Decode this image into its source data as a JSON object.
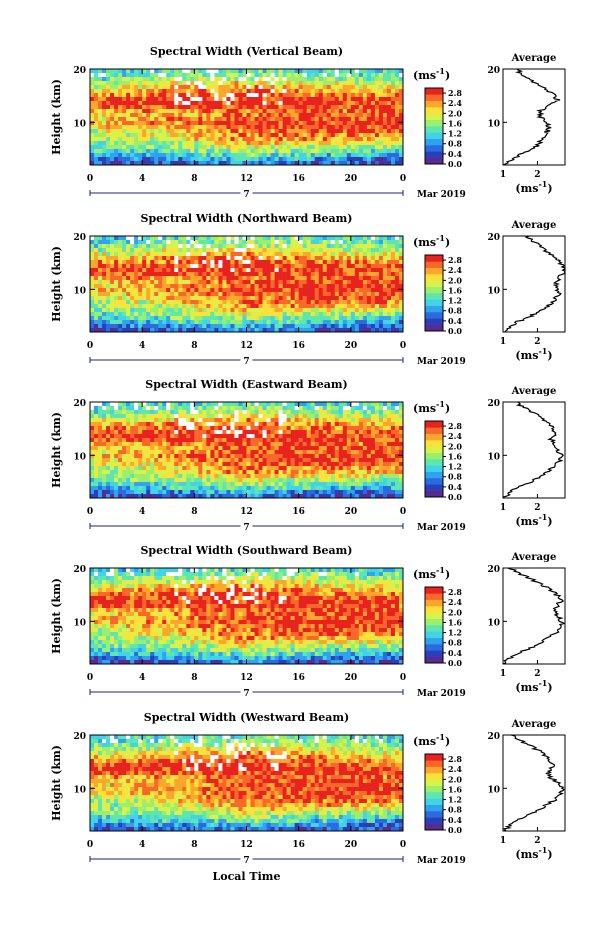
{
  "figure": {
    "xlabel": "Local Time",
    "date_label": "Mar 2019",
    "date_day": "7"
  },
  "chart_data": [
    {
      "type": "heatmap",
      "title": "Spectral Width (Vertical Beam)",
      "ylabel": "Height (km)",
      "xticks": [
        "0",
        "4",
        "8",
        "12",
        "16",
        "20",
        "0"
      ],
      "yticks": [
        "10",
        "20"
      ],
      "xlim": [
        0,
        24
      ],
      "ylim": [
        2,
        20
      ],
      "colorbar": {
        "unit": "(ms",
        "unit_exp": "-1",
        "unit_close": ")",
        "ticks": [
          "2.8",
          "2.4",
          "2.0",
          "1.6",
          "1.2",
          "0.8",
          "0.4",
          "0.0"
        ],
        "range": [
          0,
          3.0
        ]
      },
      "profile": {
        "title": "Average",
        "xticks": [
          "1",
          "2"
        ],
        "xlim": [
          1,
          2.8
        ],
        "xlabel": "(ms",
        "xlabel_exp": "-1",
        "xlabel_close": ")"
      }
    },
    {
      "type": "heatmap",
      "title": "Spectral Width (Northward Beam)",
      "ylabel": "Height (km)",
      "xticks": [
        "0",
        "4",
        "8",
        "12",
        "16",
        "20",
        "0"
      ],
      "yticks": [
        "10",
        "20"
      ],
      "xlim": [
        0,
        24
      ],
      "ylim": [
        2,
        20
      ],
      "colorbar": {
        "unit": "(ms",
        "unit_exp": "-1",
        "unit_close": ")",
        "ticks": [
          "2.8",
          "2.4",
          "2.0",
          "1.6",
          "1.2",
          "0.8",
          "0.4",
          "0.0"
        ],
        "range": [
          0,
          3.0
        ]
      },
      "profile": {
        "title": "Average",
        "xticks": [
          "1",
          "2"
        ],
        "xlim": [
          1,
          2.8
        ],
        "xlabel": "(ms",
        "xlabel_exp": "-1",
        "xlabel_close": ")"
      }
    },
    {
      "type": "heatmap",
      "title": "Spectral Width (Eastward Beam)",
      "ylabel": "Height (km)",
      "xticks": [
        "0",
        "4",
        "8",
        "12",
        "16",
        "20",
        "0"
      ],
      "yticks": [
        "10",
        "20"
      ],
      "xlim": [
        0,
        24
      ],
      "ylim": [
        2,
        20
      ],
      "colorbar": {
        "unit": "(ms",
        "unit_exp": "-1",
        "unit_close": ")",
        "ticks": [
          "2.8",
          "2.4",
          "2.0",
          "1.6",
          "1.2",
          "0.8",
          "0.4",
          "0.0"
        ],
        "range": [
          0,
          3.0
        ]
      },
      "profile": {
        "title": "Average",
        "xticks": [
          "1",
          "2"
        ],
        "xlim": [
          1,
          2.8
        ],
        "xlabel": "(ms",
        "xlabel_exp": "-1",
        "xlabel_close": ")"
      }
    },
    {
      "type": "heatmap",
      "title": "Spectral Width (Southward Beam)",
      "ylabel": "Height (km)",
      "xticks": [
        "0",
        "4",
        "8",
        "12",
        "16",
        "20",
        "0"
      ],
      "yticks": [
        "10",
        "20"
      ],
      "xlim": [
        0,
        24
      ],
      "ylim": [
        2,
        20
      ],
      "colorbar": {
        "unit": "(ms",
        "unit_exp": "-1",
        "unit_close": ")",
        "ticks": [
          "2.8",
          "2.4",
          "2.0",
          "1.6",
          "1.2",
          "0.8",
          "0.4",
          "0.0"
        ],
        "range": [
          0,
          3.0
        ]
      },
      "profile": {
        "title": "Average",
        "xticks": [
          "1",
          "2"
        ],
        "xlim": [
          1,
          2.8
        ],
        "xlabel": "(ms",
        "xlabel_exp": "-1",
        "xlabel_close": ")"
      }
    },
    {
      "type": "heatmap",
      "title": "Spectral Width (Westward Beam)",
      "ylabel": "Height (km)",
      "xticks": [
        "0",
        "4",
        "8",
        "12",
        "16",
        "20",
        "0"
      ],
      "yticks": [
        "10",
        "20"
      ],
      "xlim": [
        0,
        24
      ],
      "ylim": [
        2,
        20
      ],
      "colorbar": {
        "unit": "(ms",
        "unit_exp": "-1",
        "unit_close": ")",
        "ticks": [
          "2.8",
          "2.4",
          "2.0",
          "1.6",
          "1.2",
          "0.8",
          "0.4",
          "0.0"
        ],
        "range": [
          0,
          3.0
        ]
      },
      "profile": {
        "title": "Average",
        "xticks": [
          "1",
          "2"
        ],
        "xlim": [
          1,
          2.8
        ],
        "xlabel": "(ms",
        "xlabel_exp": "-1",
        "xlabel_close": ")"
      }
    }
  ],
  "profiles": [
    {
      "height": [
        2,
        3,
        4,
        5,
        6,
        7,
        8,
        9,
        10,
        11,
        12,
        13,
        14,
        15,
        16,
        17,
        18,
        19,
        20
      ],
      "width": [
        1.0,
        1.25,
        1.5,
        1.9,
        2.05,
        2.15,
        2.25,
        2.35,
        2.3,
        2.1,
        2.05,
        2.25,
        2.6,
        2.5,
        2.3,
        2.0,
        1.75,
        1.55,
        1.4
      ]
    },
    {
      "height": [
        2,
        3,
        4,
        5,
        6,
        7,
        8,
        9,
        10,
        11,
        12,
        13,
        14,
        15,
        16,
        17,
        18,
        19,
        20
      ],
      "width": [
        1.0,
        1.25,
        1.45,
        1.8,
        2.1,
        2.3,
        2.5,
        2.6,
        2.6,
        2.55,
        2.6,
        2.75,
        2.8,
        2.65,
        2.5,
        2.3,
        2.1,
        1.9,
        1.7
      ]
    },
    {
      "height": [
        2,
        3,
        4,
        5,
        6,
        7,
        8,
        9,
        10,
        11,
        12,
        13,
        14,
        15,
        16,
        17,
        18,
        19,
        20
      ],
      "width": [
        1.0,
        1.2,
        1.45,
        1.8,
        2.1,
        2.3,
        2.5,
        2.65,
        2.7,
        2.6,
        2.5,
        2.4,
        2.55,
        2.45,
        2.3,
        2.1,
        1.9,
        1.6,
        1.35
      ]
    },
    {
      "height": [
        2,
        3,
        4,
        5,
        6,
        7,
        8,
        9,
        10,
        11,
        12,
        13,
        14,
        15,
        16,
        17,
        18,
        19,
        20
      ],
      "width": [
        1.0,
        1.2,
        1.45,
        1.8,
        2.1,
        2.35,
        2.55,
        2.7,
        2.7,
        2.6,
        2.55,
        2.55,
        2.7,
        2.55,
        2.35,
        2.1,
        1.8,
        1.45,
        1.2
      ]
    },
    {
      "height": [
        2,
        3,
        4,
        5,
        6,
        7,
        8,
        9,
        10,
        11,
        12,
        13,
        14,
        15,
        16,
        17,
        18,
        19,
        20
      ],
      "width": [
        1.0,
        1.2,
        1.4,
        1.75,
        2.05,
        2.3,
        2.55,
        2.7,
        2.75,
        2.6,
        2.4,
        2.3,
        2.45,
        2.4,
        2.25,
        2.05,
        1.8,
        1.5,
        1.3
      ]
    }
  ],
  "field": {
    "heights": [
      2,
      3,
      4,
      5,
      6,
      7,
      8,
      9,
      10,
      11,
      12,
      13,
      14,
      15,
      16,
      17,
      18,
      19,
      20
    ],
    "times": [
      0,
      6,
      12,
      18,
      24
    ],
    "width": [
      [
        0.3,
        0.4,
        0.6,
        0.4,
        0.3
      ],
      [
        0.6,
        0.8,
        1.0,
        0.7,
        0.5
      ],
      [
        1.0,
        1.2,
        1.5,
        1.2,
        0.9
      ],
      [
        1.3,
        1.5,
        1.8,
        1.5,
        1.4
      ],
      [
        1.5,
        1.7,
        2.2,
        2.0,
        1.8
      ],
      [
        1.6,
        1.9,
        2.5,
        2.4,
        2.2
      ],
      [
        1.7,
        2.1,
        2.6,
        2.7,
        2.6
      ],
      [
        2.0,
        2.3,
        2.7,
        2.8,
        2.8
      ],
      [
        2.3,
        2.5,
        2.8,
        2.9,
        2.9
      ],
      [
        2.0,
        2.2,
        2.7,
        2.8,
        2.8
      ],
      [
        2.2,
        2.4,
        2.6,
        2.7,
        2.6
      ],
      [
        2.7,
        2.8,
        2.8,
        2.8,
        2.7
      ],
      [
        2.8,
        2.9,
        2.9,
        2.9,
        2.8
      ],
      [
        2.5,
        2.7,
        2.8,
        2.6,
        2.5
      ],
      [
        2.1,
        2.4,
        2.6,
        2.3,
        2.2
      ],
      [
        1.7,
        2.0,
        2.3,
        2.0,
        1.8
      ],
      [
        1.4,
        1.7,
        1.9,
        1.7,
        1.5
      ],
      [
        1.2,
        1.4,
        1.6,
        1.4,
        1.3
      ],
      [
        1.0,
        1.2,
        1.3,
        1.2,
        1.1
      ]
    ]
  },
  "colormap": [
    "#5a2a8c",
    "#2b3fb8",
    "#2a6be0",
    "#2fa3f0",
    "#41d3e8",
    "#5ee6b0",
    "#9bef6e",
    "#d9f24b",
    "#fde03a",
    "#fda62c",
    "#f8682a",
    "#e8231f"
  ]
}
